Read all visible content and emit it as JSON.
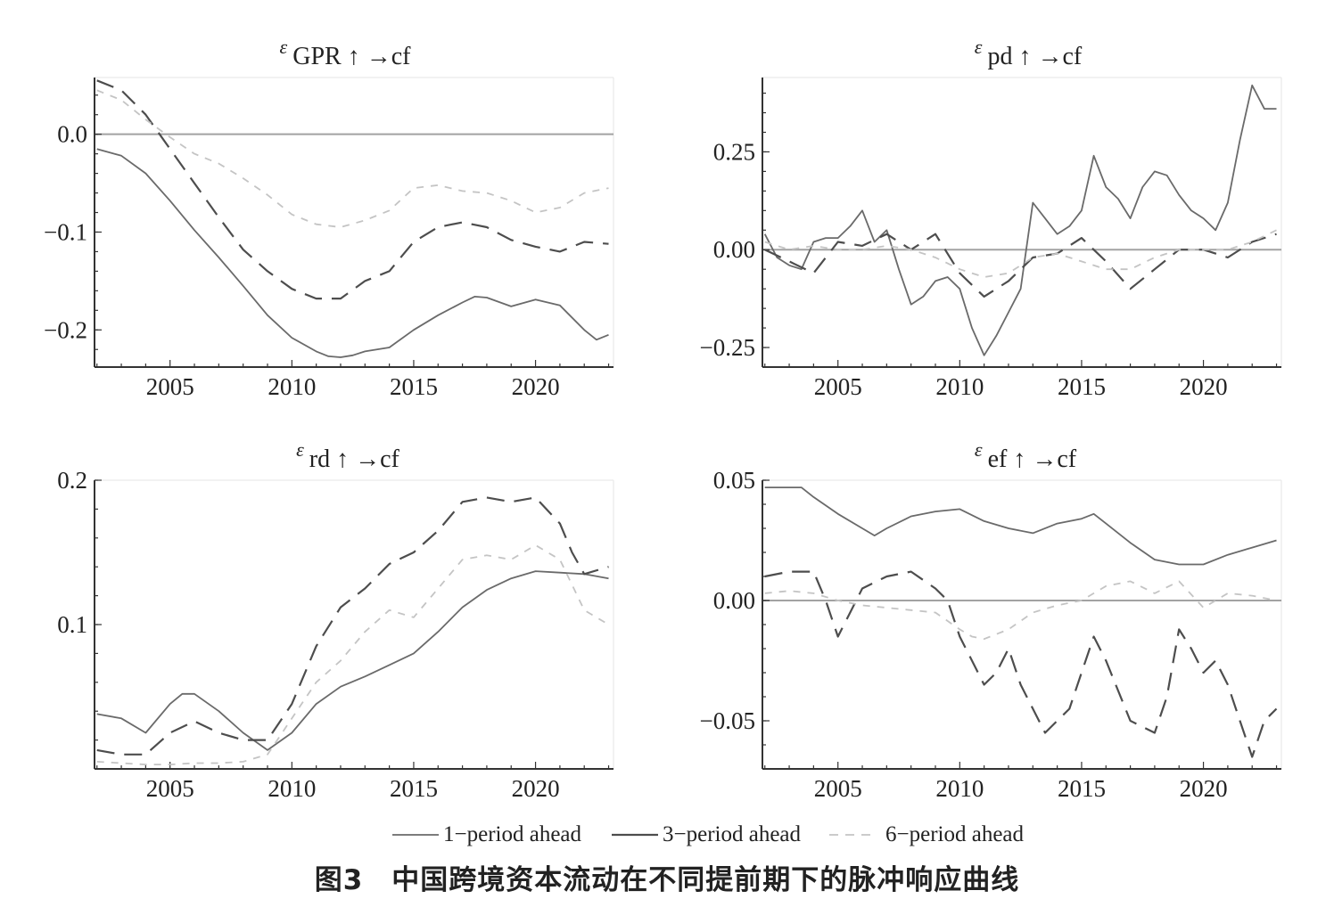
{
  "figure": {
    "caption": "图3　中国跨境资本流动在不同提前期下的脉冲响应曲线",
    "legend": [
      {
        "label": "1−period ahead",
        "style": "solid"
      },
      {
        "label": "3−period ahead",
        "style": "dashed"
      },
      {
        "label": "6−period ahead",
        "style": "dotted"
      }
    ]
  },
  "chart_data": [
    {
      "type": "line",
      "title": {
        "eps": "ε",
        "shock": "GPR",
        "rest": "↑ →cf"
      },
      "xlim": [
        2001.9,
        2023.2
      ],
      "ylim": [
        -0.238,
        0.058
      ],
      "xticks": [
        2005,
        2010,
        2015,
        2020
      ],
      "yticks": [
        {
          "v": 0.0,
          "label": "0.0"
        },
        {
          "v": -0.1,
          "label": "−0.1"
        },
        {
          "v": -0.2,
          "label": "−0.2"
        }
      ],
      "zero_line": true,
      "series": [
        {
          "name": "1−period ahead",
          "x": [
            2002,
            2003,
            2004,
            2005,
            2006,
            2007,
            2008,
            2009,
            2010,
            2011,
            2011.5,
            2012,
            2012.5,
            2013,
            2014,
            2015,
            2016,
            2017,
            2017.5,
            2018,
            2019,
            2020,
            2021,
            2022,
            2022.5,
            2023
          ],
          "y": [
            -0.015,
            -0.022,
            -0.04,
            -0.068,
            -0.098,
            -0.126,
            -0.155,
            -0.185,
            -0.208,
            -0.222,
            -0.227,
            -0.228,
            -0.226,
            -0.222,
            -0.218,
            -0.2,
            -0.185,
            -0.172,
            -0.166,
            -0.167,
            -0.176,
            -0.169,
            -0.175,
            -0.2,
            -0.21,
            -0.205
          ]
        },
        {
          "name": "3−period ahead",
          "x": [
            2002,
            2003,
            2004,
            2005,
            2006,
            2007,
            2008,
            2009,
            2010,
            2011,
            2012,
            2013,
            2014,
            2015,
            2016,
            2017,
            2018,
            2019,
            2020,
            2021,
            2022,
            2023
          ],
          "y": [
            0.055,
            0.045,
            0.02,
            -0.015,
            -0.05,
            -0.085,
            -0.118,
            -0.14,
            -0.158,
            -0.168,
            -0.168,
            -0.15,
            -0.14,
            -0.11,
            -0.095,
            -0.09,
            -0.095,
            -0.108,
            -0.115,
            -0.12,
            -0.11,
            -0.112
          ]
        },
        {
          "name": "6−period ahead",
          "x": [
            2002,
            2003,
            2004,
            2005,
            2006,
            2007,
            2008,
            2009,
            2010,
            2011,
            2012,
            2013,
            2014,
            2015,
            2016,
            2017,
            2018,
            2019,
            2020,
            2021,
            2022,
            2023
          ],
          "y": [
            0.045,
            0.035,
            0.015,
            -0.003,
            -0.02,
            -0.03,
            -0.045,
            -0.062,
            -0.082,
            -0.092,
            -0.095,
            -0.088,
            -0.078,
            -0.055,
            -0.052,
            -0.058,
            -0.06,
            -0.068,
            -0.08,
            -0.075,
            -0.06,
            -0.055
          ]
        }
      ]
    },
    {
      "type": "line",
      "title": {
        "eps": "ε",
        "shock": "pd",
        "rest": "↑ →cf"
      },
      "xlim": [
        2001.9,
        2023.2
      ],
      "ylim": [
        -0.3,
        0.44
      ],
      "xticks": [
        2005,
        2010,
        2015,
        2020
      ],
      "yticks": [
        {
          "v": 0.25,
          "label": "0.25"
        },
        {
          "v": 0.0,
          "label": "0.00"
        },
        {
          "v": -0.25,
          "label": "−0.25"
        }
      ],
      "zero_line": true,
      "series": [
        {
          "name": "1−period ahead",
          "x": [
            2002,
            2002.5,
            2003,
            2003.5,
            2004,
            2004.5,
            2005,
            2005.5,
            2006,
            2006.5,
            2007,
            2007.5,
            2008,
            2008.5,
            2009,
            2009.5,
            2010,
            2010.5,
            2011,
            2011.5,
            2012,
            2012.5,
            2013,
            2013.5,
            2014,
            2014.5,
            2015,
            2015.5,
            2016,
            2016.5,
            2017,
            2017.5,
            2018,
            2018.5,
            2019,
            2019.5,
            2020,
            2020.5,
            2021,
            2021.5,
            2022,
            2022.5,
            2023
          ],
          "y": [
            0.04,
            -0.02,
            -0.04,
            -0.05,
            0.02,
            0.03,
            0.03,
            0.06,
            0.1,
            0.02,
            0.05,
            -0.05,
            -0.14,
            -0.12,
            -0.08,
            -0.07,
            -0.1,
            -0.2,
            -0.27,
            -0.22,
            -0.16,
            -0.1,
            0.12,
            0.08,
            0.04,
            0.06,
            0.1,
            0.24,
            0.16,
            0.13,
            0.08,
            0.16,
            0.2,
            0.19,
            0.14,
            0.1,
            0.08,
            0.05,
            0.12,
            0.28,
            0.42,
            0.36,
            0.36
          ]
        },
        {
          "name": "3−period ahead",
          "x": [
            2002,
            2003,
            2004,
            2005,
            2006,
            2007,
            2008,
            2009,
            2010,
            2011,
            2012,
            2013,
            2014,
            2015,
            2016,
            2017,
            2018,
            2019,
            2020,
            2021,
            2022,
            2023
          ],
          "y": [
            0.0,
            -0.03,
            -0.06,
            0.02,
            0.01,
            0.04,
            0.0,
            0.04,
            -0.06,
            -0.12,
            -0.08,
            -0.02,
            -0.01,
            0.03,
            -0.03,
            -0.1,
            -0.05,
            0.0,
            0.0,
            -0.02,
            0.02,
            0.04
          ]
        },
        {
          "name": "6−period ahead",
          "x": [
            2002,
            2003,
            2004,
            2005,
            2006,
            2007,
            2008,
            2009,
            2010,
            2011,
            2012,
            2013,
            2014,
            2015,
            2016,
            2017,
            2018,
            2019,
            2020,
            2021,
            2022,
            2023
          ],
          "y": [
            0.02,
            0.0,
            0.01,
            0.0,
            0.0,
            0.01,
            0.0,
            -0.02,
            -0.05,
            -0.07,
            -0.06,
            -0.02,
            -0.01,
            -0.03,
            -0.05,
            -0.05,
            -0.02,
            0.0,
            0.0,
            0.0,
            0.02,
            0.05
          ]
        }
      ]
    },
    {
      "type": "line",
      "title": {
        "eps": "ε",
        "shock": "rd",
        "rest": "↑ →cf"
      },
      "xlim": [
        2001.9,
        2023.2
      ],
      "ylim": [
        0.0,
        0.2
      ],
      "xticks": [
        2005,
        2010,
        2015,
        2020
      ],
      "yticks": [
        {
          "v": 0.2,
          "label": "0.2"
        },
        {
          "v": 0.1,
          "label": "0.1"
        }
      ],
      "zero_line": false,
      "series": [
        {
          "name": "1−period ahead",
          "x": [
            2002,
            2003,
            2004,
            2005,
            2005.5,
            2006,
            2007,
            2008,
            2009,
            2010,
            2011,
            2012,
            2013,
            2014,
            2015,
            2016,
            2017,
            2018,
            2019,
            2020,
            2021,
            2022,
            2023
          ],
          "y": [
            0.038,
            0.035,
            0.025,
            0.045,
            0.052,
            0.052,
            0.04,
            0.025,
            0.013,
            0.025,
            0.045,
            0.057,
            0.064,
            0.072,
            0.08,
            0.095,
            0.112,
            0.124,
            0.132,
            0.137,
            0.136,
            0.135,
            0.132
          ]
        },
        {
          "name": "3−period ahead",
          "x": [
            2002,
            2003,
            2004,
            2005,
            2006,
            2007,
            2008,
            2009,
            2010,
            2011,
            2012,
            2013,
            2014,
            2015,
            2016,
            2017,
            2018,
            2019,
            2020,
            2021,
            2021.5,
            2022,
            2023
          ],
          "y": [
            0.013,
            0.01,
            0.01,
            0.025,
            0.033,
            0.025,
            0.02,
            0.02,
            0.045,
            0.085,
            0.112,
            0.125,
            0.142,
            0.15,
            0.165,
            0.185,
            0.188,
            0.185,
            0.188,
            0.17,
            0.15,
            0.135,
            0.14
          ]
        },
        {
          "name": "6−period ahead",
          "x": [
            2002,
            2003,
            2004,
            2005,
            2006,
            2007,
            2008,
            2009,
            2010,
            2011,
            2012,
            2013,
            2014,
            2015,
            2016,
            2017,
            2018,
            2019,
            2020,
            2021,
            2022,
            2023
          ],
          "y": [
            0.005,
            0.004,
            0.003,
            0.003,
            0.004,
            0.004,
            0.005,
            0.01,
            0.035,
            0.06,
            0.075,
            0.095,
            0.11,
            0.105,
            0.125,
            0.145,
            0.148,
            0.145,
            0.155,
            0.145,
            0.11,
            0.1
          ]
        }
      ]
    },
    {
      "type": "line",
      "title": {
        "eps": "ε",
        "shock": "ef",
        "rest": "↑ →cf"
      },
      "xlim": [
        2001.9,
        2023.2
      ],
      "ylim": [
        -0.07,
        0.05
      ],
      "xticks": [
        2005,
        2010,
        2015,
        2020
      ],
      "yticks": [
        {
          "v": 0.05,
          "label": "0.05"
        },
        {
          "v": 0.0,
          "label": "0.00"
        },
        {
          "v": -0.05,
          "label": "−0.05"
        }
      ],
      "zero_line": true,
      "series": [
        {
          "name": "1−period ahead",
          "x": [
            2002,
            2003,
            2003.5,
            2004,
            2005,
            2006,
            2006.5,
            2007,
            2008,
            2009,
            2010,
            2011,
            2012,
            2013,
            2014,
            2015,
            2015.5,
            2016,
            2017,
            2018,
            2019,
            2020,
            2021,
            2022,
            2023
          ],
          "y": [
            0.047,
            0.047,
            0.047,
            0.043,
            0.036,
            0.03,
            0.027,
            0.03,
            0.035,
            0.037,
            0.038,
            0.033,
            0.03,
            0.028,
            0.032,
            0.034,
            0.036,
            0.032,
            0.024,
            0.017,
            0.015,
            0.015,
            0.019,
            0.022,
            0.025
          ]
        },
        {
          "name": "3−period ahead",
          "x": [
            2002,
            2003,
            2004,
            2004.5,
            2005,
            2005.5,
            2006,
            2007,
            2008,
            2009,
            2009.5,
            2010,
            2010.5,
            2011,
            2011.5,
            2012,
            2012.5,
            2013,
            2013.5,
            2014,
            2014.5,
            2015,
            2015.5,
            2016,
            2017,
            2018,
            2018.5,
            2019,
            2019.5,
            2020,
            2020.5,
            2021,
            2021.5,
            2022,
            2022.5,
            2023
          ],
          "y": [
            0.01,
            0.012,
            0.012,
            0.0,
            -0.015,
            -0.005,
            0.005,
            0.01,
            0.012,
            0.005,
            0.0,
            -0.015,
            -0.025,
            -0.035,
            -0.03,
            -0.02,
            -0.035,
            -0.045,
            -0.055,
            -0.05,
            -0.045,
            -0.03,
            -0.015,
            -0.025,
            -0.05,
            -0.055,
            -0.04,
            -0.012,
            -0.02,
            -0.03,
            -0.025,
            -0.035,
            -0.05,
            -0.065,
            -0.05,
            -0.045
          ]
        },
        {
          "name": "6−period ahead",
          "x": [
            2002,
            2003,
            2004,
            2005,
            2006,
            2007,
            2008,
            2009,
            2010,
            2010.5,
            2011,
            2012,
            2013,
            2014,
            2015,
            2016,
            2017,
            2018,
            2019,
            2020,
            2021,
            2022,
            2023
          ],
          "y": [
            0.003,
            0.004,
            0.003,
            0.0,
            -0.002,
            -0.003,
            -0.004,
            -0.005,
            -0.012,
            -0.015,
            -0.016,
            -0.012,
            -0.005,
            -0.002,
            0.0,
            0.006,
            0.008,
            0.003,
            0.008,
            -0.003,
            0.003,
            0.002,
            0.0
          ]
        }
      ]
    }
  ]
}
